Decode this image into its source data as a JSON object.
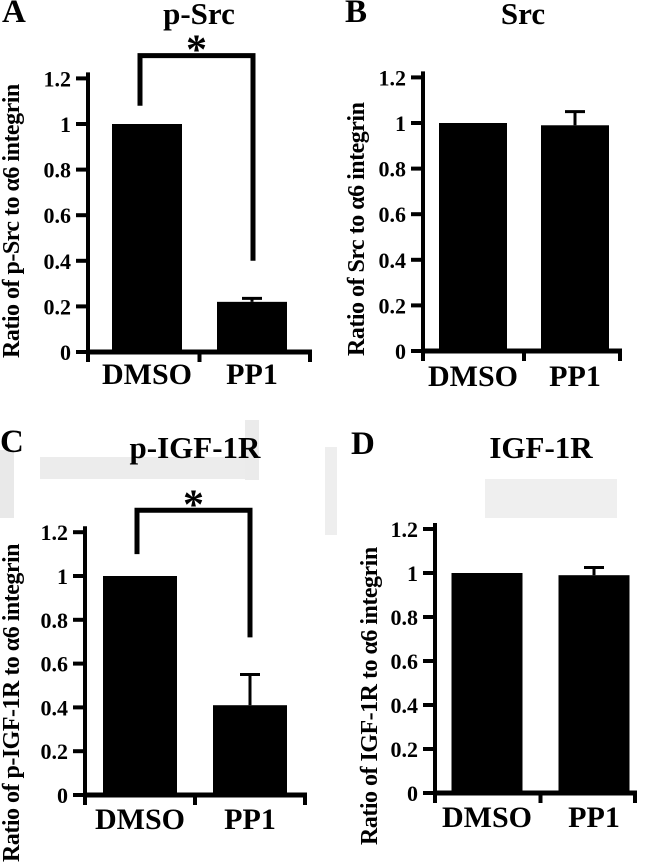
{
  "figure": {
    "background": "#ffffff",
    "bar_color": "#000000",
    "axis_color": "#000000",
    "text_color": "#000000"
  },
  "chart_data": [
    {
      "type": "bar",
      "letter": "A",
      "title": "p-Src",
      "ylabel": "Ratio of p-Src to α6 integrin",
      "categories": [
        "DMSO",
        "PP1"
      ],
      "values": [
        1.0,
        0.22
      ],
      "errors": [
        0,
        0.015
      ],
      "ylim": [
        0,
        1.3
      ],
      "yticks": [
        "0",
        "0.2",
        "0.4",
        "0.6",
        "0.8",
        "1",
        "1.2"
      ],
      "grid": false,
      "significance": {
        "symbol": "*",
        "between": [
          "DMSO",
          "PP1"
        ],
        "bar_y": 1.3,
        "left_drop_to": 1.08,
        "right_drop_to": 0.4
      }
    },
    {
      "type": "bar",
      "letter": "B",
      "title": "Src",
      "ylabel": "Ratio of Src to α6 integrin",
      "categories": [
        "DMSO",
        "PP1"
      ],
      "values": [
        1.0,
        0.99
      ],
      "errors": [
        0,
        0.06
      ],
      "ylim": [
        0,
        1.3
      ],
      "yticks": [
        "0",
        "0.2",
        "0.4",
        "0.6",
        "0.8",
        "1",
        "1.2"
      ],
      "grid": false,
      "significance": null
    },
    {
      "type": "bar",
      "letter": "C",
      "title": "p-IGF-1R",
      "ylabel": "Ratio of p-IGF-1R to α6 integrin",
      "categories": [
        "DMSO",
        "PP1"
      ],
      "values": [
        1.0,
        0.41
      ],
      "errors": [
        0,
        0.14
      ],
      "ylim": [
        0,
        1.3
      ],
      "yticks": [
        "0",
        "0.2",
        "0.4",
        "0.6",
        "0.8",
        "1",
        "1.2"
      ],
      "grid": false,
      "significance": {
        "symbol": "*",
        "between": [
          "DMSO",
          "PP1"
        ],
        "bar_y": 1.3,
        "left_drop_to": 1.1,
        "right_drop_to": 0.72
      }
    },
    {
      "type": "bar",
      "letter": "D",
      "title": "IGF-1R",
      "ylabel": "Ratio of IGF-1R to α6 integrin",
      "categories": [
        "DMSO",
        "PP1"
      ],
      "values": [
        1.0,
        0.99
      ],
      "errors": [
        0,
        0.035
      ],
      "ylim": [
        0,
        1.3
      ],
      "yticks": [
        "0",
        "0.2",
        "0.4",
        "0.6",
        "0.8",
        "1",
        "1.2"
      ],
      "grid": false,
      "significance": null
    }
  ]
}
